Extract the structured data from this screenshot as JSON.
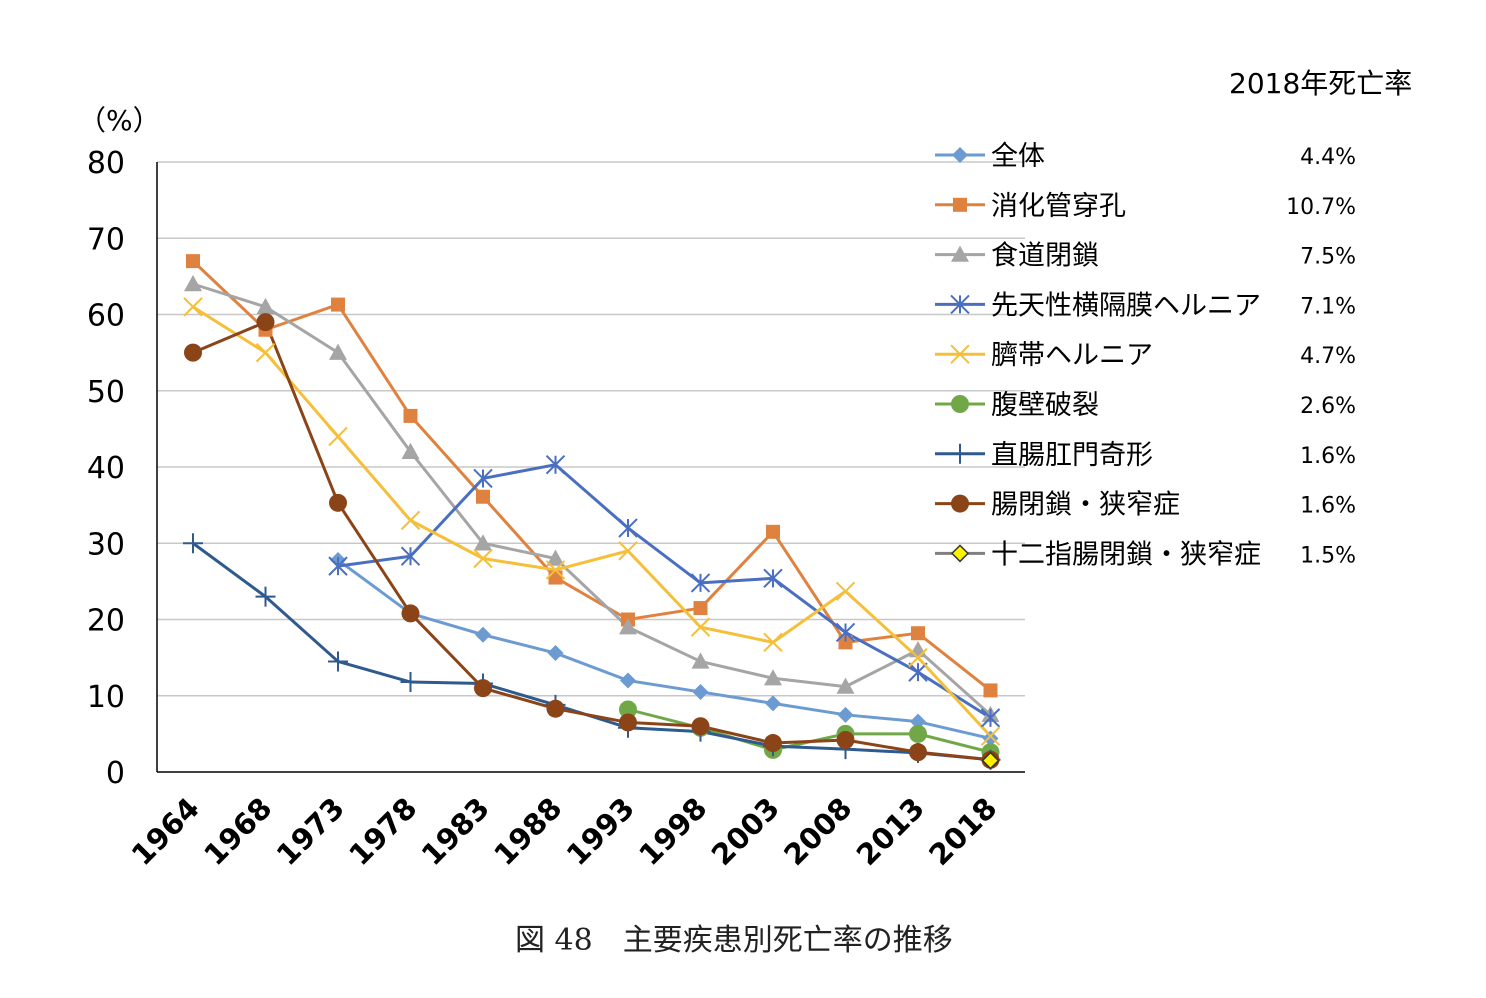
{
  "chart_data": {
    "type": "line",
    "ylabel": "（%）",
    "ylim": [
      0,
      80
    ],
    "yticks": [
      "0",
      "10",
      "20",
      "30",
      "40",
      "50",
      "60",
      "70",
      "80"
    ],
    "categories": [
      "1964",
      "1968",
      "1973",
      "1978",
      "1983",
      "1988",
      "1993",
      "1998",
      "2003",
      "2008",
      "2013",
      "2018"
    ],
    "grid": true,
    "legend_position": "right",
    "legend_title": "2018年死亡率",
    "caption": "図 48　主要疾患別死亡率の推移",
    "series": [
      {
        "name": "全体",
        "rate": "4.4%",
        "color": "#6c9bd2",
        "marker": "diamond",
        "values": [
          null,
          null,
          27.8,
          20.8,
          18,
          15.6,
          12,
          10.5,
          9,
          7.5,
          6.6,
          4.4
        ]
      },
      {
        "name": "消化管穿孔",
        "rate": "10.7%",
        "color": "#e0823f",
        "marker": "square",
        "values": [
          67,
          58,
          61.3,
          46.7,
          36.1,
          25.5,
          20,
          21.5,
          31.5,
          17,
          18.2,
          10.7
        ]
      },
      {
        "name": "食道閉鎖",
        "rate": "7.5%",
        "color": "#a5a5a5",
        "marker": "triangle",
        "values": [
          64,
          61,
          55,
          42,
          30,
          28,
          19,
          14.5,
          12.3,
          11.2,
          16,
          7.5
        ]
      },
      {
        "name": "先天性横隔膜ヘルニア",
        "rate": "7.1%",
        "color": "#4a6fc1",
        "marker": "asterisk",
        "values": [
          null,
          null,
          27,
          28.3,
          38.5,
          40.3,
          32,
          24.8,
          25.4,
          18.3,
          13.1,
          7.1
        ]
      },
      {
        "name": "臍帯ヘルニア",
        "rate": "4.7%",
        "color": "#f5bf3a",
        "marker": "x",
        "values": [
          61,
          55,
          44,
          33,
          28,
          26.5,
          29,
          19,
          17,
          23.7,
          15,
          4.7
        ]
      },
      {
        "name": "腹壁破裂",
        "rate": "2.6%",
        "color": "#70a848",
        "marker": "circle",
        "values": [
          null,
          null,
          null,
          null,
          null,
          null,
          8.2,
          5.8,
          2.9,
          5,
          5,
          2.6
        ]
      },
      {
        "name": "直腸肛門奇形",
        "rate": "1.6%",
        "color": "#2e5a8e",
        "marker": "plus",
        "values": [
          30,
          23,
          14.5,
          11.8,
          11.6,
          8.8,
          5.8,
          5.3,
          3.4,
          3,
          2.5,
          1.6
        ]
      },
      {
        "name": "腸閉鎖・狭窄症",
        "rate": "1.6%",
        "color": "#8b4418",
        "marker": "circle",
        "values": [
          55,
          59,
          35.3,
          20.8,
          11,
          8.3,
          6.5,
          6,
          3.8,
          4.2,
          2.6,
          1.6
        ]
      },
      {
        "name": "十二指腸閉鎖・狭窄症",
        "rate": "1.5%",
        "color": "#7f7f7f",
        "marker": "diamond-yellow",
        "values": [
          null,
          null,
          null,
          null,
          null,
          null,
          null,
          null,
          null,
          null,
          null,
          1.5
        ]
      }
    ]
  }
}
